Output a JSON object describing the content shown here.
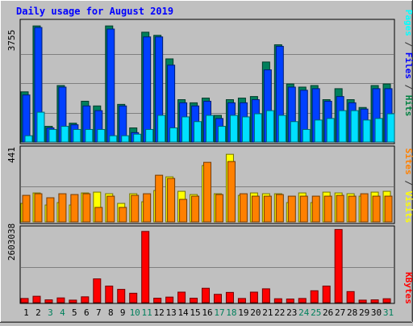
{
  "title": "Daily usage for August 2019",
  "panels": {
    "top": {
      "max_label": "3755",
      "legend": [
        {
          "text": "Pages",
          "color": "#00ffff"
        },
        {
          "text": " / ",
          "color": "#333333"
        },
        {
          "text": "Files",
          "color": "#0000ff"
        },
        {
          "text": " / ",
          "color": "#333333"
        },
        {
          "text": "Hits",
          "color": "#008040"
        }
      ]
    },
    "middle": {
      "max_label": "441",
      "legend": [
        {
          "text": "Sites",
          "color": "#ff8000"
        },
        {
          "text": " / ",
          "color": "#333333"
        },
        {
          "text": "Visits",
          "color": "#ffff00"
        }
      ]
    },
    "bottom": {
      "max_label": "2603038",
      "legend": [
        {
          "text": "KBytes",
          "color": "#ff0000"
        }
      ]
    }
  },
  "chart_data": {
    "type": "bar",
    "title": "Daily usage for August 2019",
    "categories": [
      "1",
      "2",
      "3",
      "4",
      "5",
      "6",
      "7",
      "8",
      "9",
      "10",
      "11",
      "12",
      "13",
      "14",
      "15",
      "16",
      "17",
      "18",
      "19",
      "20",
      "21",
      "22",
      "23",
      "24",
      "25",
      "26",
      "27",
      "28",
      "29",
      "30",
      "31"
    ],
    "weekend_days": [
      "3",
      "4",
      "10",
      "11",
      "17",
      "18",
      "24",
      "25",
      "31"
    ],
    "colors": {
      "hits": "#00805c",
      "files": "#0040ff",
      "pages": "#00e0ff",
      "visits": "#ffff00",
      "sites": "#ff8000",
      "kbytes": "#ff0000",
      "weekday_label": "#000000",
      "weekend_label": "#00805c"
    },
    "panels": [
      {
        "name": "hits_files_pages",
        "ylim": [
          0,
          3755
        ],
        "series": [
          {
            "name": "Hits",
            "values": [
              1600,
              3700,
              500,
              1800,
              600,
              1300,
              1150,
              3700,
              1200,
              450,
              3500,
              3400,
              2650,
              1350,
              1250,
              1400,
              850,
              1350,
              1400,
              1450,
              2550,
              3100,
              1850,
              1750,
              1800,
              1350,
              1700,
              1350,
              1100,
              1800,
              1850
            ]
          },
          {
            "name": "Files",
            "values": [
              1500,
              3650,
              450,
              1750,
              550,
              1150,
              1000,
              3600,
              1150,
              300,
              3350,
              3350,
              2450,
              1250,
              1150,
              1300,
              750,
              1250,
              1250,
              1350,
              2300,
              3050,
              1750,
              1650,
              1700,
              1300,
              1450,
              1250,
              1050,
              1700,
              1700
            ]
          },
          {
            "name": "Pages",
            "values": [
              200,
              950,
              400,
              500,
              400,
              400,
              400,
              200,
              200,
              250,
              400,
              850,
              450,
              800,
              650,
              850,
              500,
              850,
              800,
              900,
              1000,
              850,
              650,
              400,
              700,
              750,
              1000,
              1000,
              700,
              750,
              900
            ]
          }
        ]
      },
      {
        "name": "visits_sites",
        "ylim": [
          0,
          441
        ],
        "series": [
          {
            "name": "Visits",
            "values": [
              115,
              180,
              105,
              120,
              105,
              180,
              185,
              175,
              115,
              175,
              125,
              195,
              280,
              190,
              170,
              350,
              175,
              420,
              165,
              180,
              175,
              175,
              120,
              180,
              120,
              185,
              180,
              175,
              160,
              185,
              190
            ]
          },
          {
            "name": "Sites",
            "values": [
              165,
              175,
              150,
              175,
              170,
              175,
              90,
              160,
              90,
              165,
              175,
              290,
              270,
              140,
              160,
              370,
              170,
              375,
              175,
              160,
              160,
              170,
              160,
              160,
              160,
              160,
              165,
              160,
              175,
              160,
              160
            ]
          }
        ]
      },
      {
        "name": "kbytes",
        "ylim": [
          0,
          2603038
        ],
        "series": [
          {
            "name": "KBytes",
            "values": [
              150000,
              230000,
              100000,
              170000,
              90000,
              210000,
              860000,
              600000,
              480000,
              340000,
              2580000,
              160000,
              200000,
              380000,
              160000,
              520000,
              300000,
              370000,
              150000,
              380000,
              500000,
              140000,
              130000,
              150000,
              430000,
              600000,
              2650000,
              400000,
              90000,
              100000,
              140000
            ]
          }
        ]
      }
    ]
  }
}
